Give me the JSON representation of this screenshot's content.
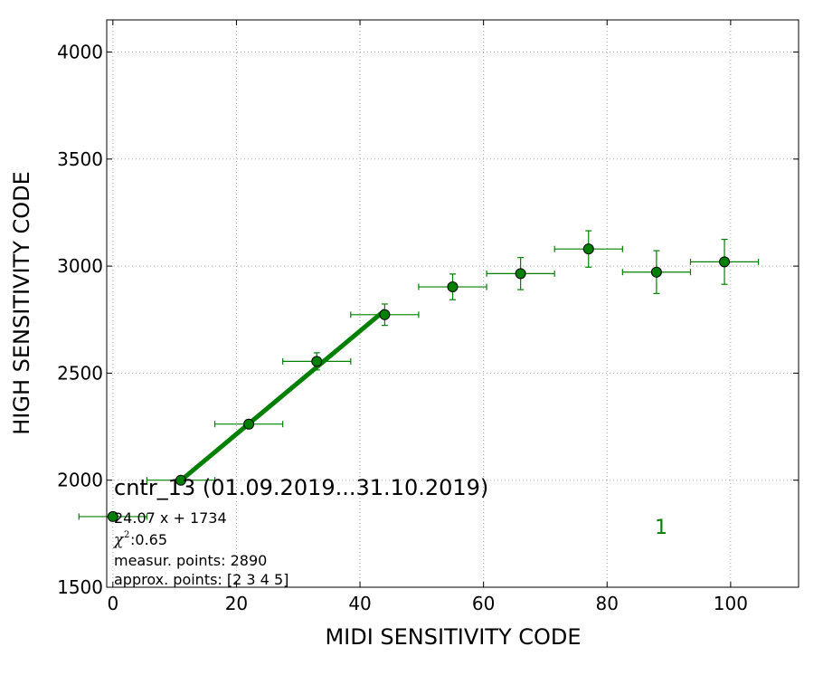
{
  "chart_data": {
    "type": "scatter",
    "xlabel": "MIDI SENSITIVITY CODE",
    "ylabel": "HIGH SENSITIVITY CODE",
    "xlim": [
      -1,
      111
    ],
    "ylim": [
      1500,
      4150
    ],
    "x_ticks": [
      0,
      20,
      40,
      60,
      80,
      100
    ],
    "y_ticks": [
      1500,
      2000,
      2500,
      3000,
      3500,
      4000
    ],
    "grid": true,
    "series": [
      {
        "color": "#008000",
        "marker": "circle",
        "points": [
          {
            "x": 0,
            "y": 1830,
            "xerr": 5.5,
            "yerr": 0
          },
          {
            "x": 11,
            "y": 2000,
            "xerr": 5.5,
            "yerr": 0
          },
          {
            "x": 22,
            "y": 2262,
            "xerr": 5.5,
            "yerr": 20
          },
          {
            "x": 33,
            "y": 2555,
            "xerr": 5.5,
            "yerr": 40
          },
          {
            "x": 44,
            "y": 2773,
            "xerr": 5.5,
            "yerr": 50
          },
          {
            "x": 55,
            "y": 2903,
            "xerr": 5.5,
            "yerr": 60
          },
          {
            "x": 66,
            "y": 2965,
            "xerr": 5.5,
            "yerr": 75
          },
          {
            "x": 77,
            "y": 3080,
            "xerr": 5.5,
            "yerr": 85
          },
          {
            "x": 88,
            "y": 2972,
            "xerr": 5.5,
            "yerr": 100
          },
          {
            "x": 99,
            "y": 3020,
            "xerr": 5.5,
            "yerr": 105
          }
        ]
      }
    ],
    "fit_line": {
      "color": "#008000",
      "slope": 24.07,
      "intercept": 1734,
      "x_range": [
        11,
        44
      ]
    },
    "annotations": {
      "title": "cntr_13 (01.09.2019...31.10.2019)",
      "equation": "24.07 x + 1734",
      "chi_symbol": "χ",
      "chi_sup": "2",
      "chi_value": " :0.65",
      "measur_points": "measur. points: 2890",
      "approx_points": "approx. points: [2 3 4 5]",
      "plot_number": "1"
    }
  }
}
